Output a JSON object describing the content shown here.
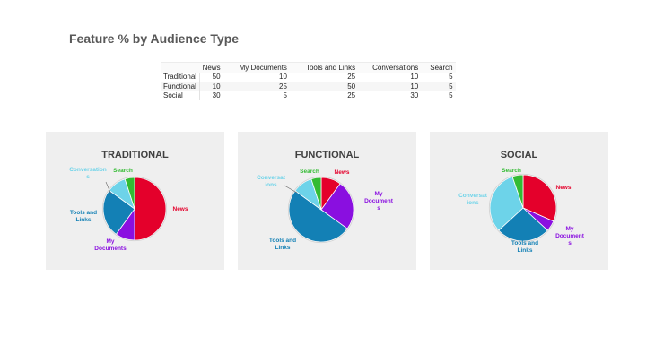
{
  "title": "Feature % by Audience Type",
  "table": {
    "headers": [
      "",
      "News",
      "My Documents",
      "Tools and Links",
      "Conversations",
      "Search"
    ],
    "rows": [
      {
        "label": "Traditional",
        "values": [
          "50",
          "10",
          "25",
          "10",
          "5"
        ]
      },
      {
        "label": "Functional",
        "values": [
          "10",
          "25",
          "50",
          "10",
          "5"
        ]
      },
      {
        "label": "Social",
        "values": [
          "30",
          "5",
          "25",
          "30",
          "5"
        ]
      }
    ]
  },
  "chart_data": [
    {
      "type": "pie",
      "title": "TRADITIONAL",
      "categories": [
        "News",
        "My Documents",
        "Tools and Links",
        "Conversations",
        "Search"
      ],
      "values": [
        50,
        10,
        25,
        10,
        5
      ],
      "slice_labels": [
        [
          "News"
        ],
        [
          "My",
          "Documents"
        ],
        [
          "Tools and",
          "Links"
        ],
        [
          "Conversation",
          "s"
        ],
        [
          "Search"
        ]
      ]
    },
    {
      "type": "pie",
      "title": "FUNCTIONAL",
      "categories": [
        "News",
        "My Documents",
        "Tools and Links",
        "Conversations",
        "Search"
      ],
      "values": [
        10,
        25,
        50,
        10,
        5
      ],
      "slice_labels": [
        [
          "News"
        ],
        [
          "My",
          "Document",
          "s"
        ],
        [
          "Tools and",
          "Links"
        ],
        [
          "Conversat",
          "ions"
        ],
        [
          "Search"
        ]
      ]
    },
    {
      "type": "pie",
      "title": "SOCIAL",
      "categories": [
        "News",
        "My Documents",
        "Tools and Links",
        "Conversations",
        "Search"
      ],
      "values": [
        30,
        5,
        25,
        30,
        5
      ],
      "slice_labels": [
        [
          "News"
        ],
        [
          "My",
          "Document",
          "s"
        ],
        [
          "Tools and",
          "Links"
        ],
        [
          "Conversat",
          "ions"
        ],
        [
          "Search"
        ]
      ]
    }
  ],
  "colors": {
    "News": "#e4002b",
    "My Documents": "#8a0fe0",
    "Tools and Links": "#1380b5",
    "Conversations": "#6dd3e9",
    "Search": "#33bb33",
    "panel_bg": "#efefef",
    "title": "#595959"
  }
}
